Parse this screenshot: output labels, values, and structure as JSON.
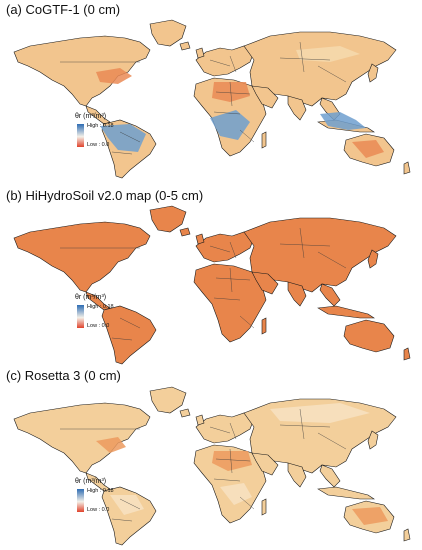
{
  "panels": [
    {
      "title": "(a) CoGTF-1 (0 cm)",
      "legend": {
        "symbol": "θr (m³/m³)",
        "high": "High : 0.18",
        "low": "Low : 0.0"
      },
      "palette": {
        "land": "#f2c58e",
        "wet": "#6f9fcf",
        "dry": "#ea8a55",
        "medium": "#f6d9ae"
      }
    },
    {
      "title": "(b) HiHydroSoil v2.0 map (0-5 cm)",
      "legend": {
        "symbol": "θr (m³/m³)",
        "high": "High : 0.18",
        "low": "Low : 0.0"
      },
      "palette": {
        "land": "#e8854b",
        "wet": "#e8854b",
        "dry": "#e07a3e",
        "medium": "#ea8b52"
      }
    },
    {
      "title": "(c) Rosetta 3 (0 cm)",
      "legend": {
        "symbol": "θr (m³/m³)",
        "high": "High : 0.18",
        "low": "Low : 0.0"
      },
      "palette": {
        "land": "#f3cf9b",
        "wet": "#f7e2c2",
        "dry": "#ec9a5e",
        "medium": "#f0bb80"
      }
    }
  ],
  "colors": {
    "legend_high": "#2e6db4",
    "legend_mid": "#f4f0e8",
    "legend_low": "#e0432c",
    "border": "#3a3a3a",
    "coast": "#1a1a1a"
  }
}
